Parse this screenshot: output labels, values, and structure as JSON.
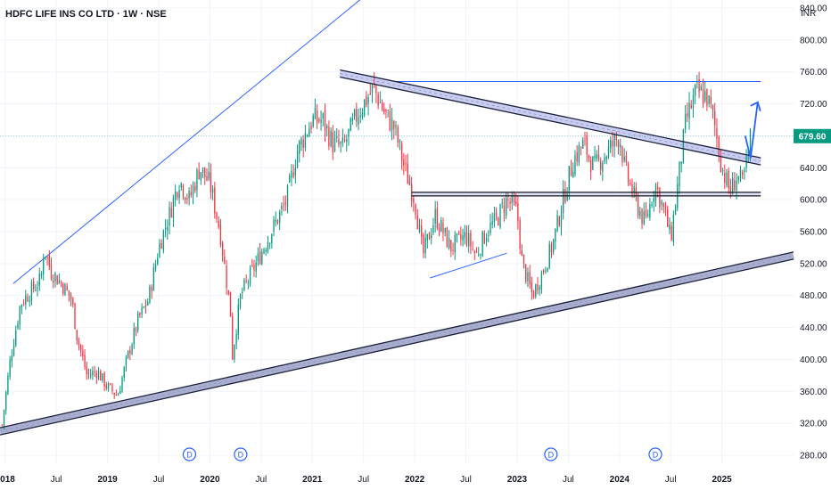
{
  "header": {
    "title": "HDFC LIFE INS CO LTD · 1W · NSE",
    "currency": "INR"
  },
  "price_badge": {
    "label": "679.60",
    "value": 679.6,
    "color": "#089981"
  },
  "colors": {
    "up": "#089981",
    "down": "#f23645",
    "trend_blue": "#2962ff",
    "channel": "#1a1f3c",
    "grid": "#f0f3fa"
  },
  "dividend_marker": "D",
  "chart_data": {
    "type": "candlestick",
    "title": "HDFC LIFE INS CO LTD · 1W · NSE",
    "y_axis": {
      "ticks": [
        280,
        320,
        360,
        400,
        440,
        480,
        520,
        560,
        600,
        640,
        680,
        720,
        760,
        800,
        840
      ],
      "tick_labels": [
        "280.00",
        "320.00",
        "360.00",
        "400.00",
        "440.00",
        "480.00",
        "520.00",
        "560.00",
        "600.00",
        "640.00",
        "680.00",
        "720.00",
        "760.00",
        "800.00",
        "840.00"
      ],
      "range": [
        270,
        850
      ]
    },
    "x_axis": {
      "range": [
        2017.95,
        2025.7
      ],
      "ticks": [
        {
          "label": "2018",
          "t": 2018.0,
          "year": true
        },
        {
          "label": "Jul",
          "t": 2018.5,
          "year": false
        },
        {
          "label": "2019",
          "t": 2019.0,
          "year": true
        },
        {
          "label": "Jul",
          "t": 2019.5,
          "year": false
        },
        {
          "label": "2020",
          "t": 2020.0,
          "year": true
        },
        {
          "label": "Jul",
          "t": 2020.5,
          "year": false
        },
        {
          "label": "2021",
          "t": 2021.0,
          "year": true
        },
        {
          "label": "Jul",
          "t": 2021.5,
          "year": false
        },
        {
          "label": "2022",
          "t": 2022.0,
          "year": true
        },
        {
          "label": "Jul",
          "t": 2022.5,
          "year": false
        },
        {
          "label": "2023",
          "t": 2023.0,
          "year": true
        },
        {
          "label": "Jul",
          "t": 2023.5,
          "year": false
        },
        {
          "label": "2024",
          "t": 2024.0,
          "year": true
        },
        {
          "label": "Jul",
          "t": 2024.5,
          "year": false
        },
        {
          "label": "2025",
          "t": 2025.0,
          "year": true
        }
      ]
    },
    "last_price": 679.6,
    "price_path": [
      [
        2017.97,
        318
      ],
      [
        2018.05,
        400
      ],
      [
        2018.15,
        470
      ],
      [
        2018.25,
        485
      ],
      [
        2018.35,
        500
      ],
      [
        2018.38,
        540
      ],
      [
        2018.45,
        510
      ],
      [
        2018.55,
        495
      ],
      [
        2018.65,
        475
      ],
      [
        2018.7,
        430
      ],
      [
        2018.8,
        380
      ],
      [
        2018.9,
        385
      ],
      [
        2019.0,
        365
      ],
      [
        2019.1,
        355
      ],
      [
        2019.2,
        405
      ],
      [
        2019.3,
        450
      ],
      [
        2019.4,
        475
      ],
      [
        2019.5,
        540
      ],
      [
        2019.6,
        580
      ],
      [
        2019.7,
        625
      ],
      [
        2019.8,
        600
      ],
      [
        2019.9,
        640
      ],
      [
        2020.0,
        620
      ],
      [
        2020.1,
        560
      ],
      [
        2020.2,
        460
      ],
      [
        2020.22,
        405
      ],
      [
        2020.3,
        480
      ],
      [
        2020.45,
        520
      ],
      [
        2020.6,
        560
      ],
      [
        2020.75,
        600
      ],
      [
        2020.85,
        660
      ],
      [
        2021.0,
        700
      ],
      [
        2021.1,
        700
      ],
      [
        2021.2,
        670
      ],
      [
        2021.3,
        665
      ],
      [
        2021.45,
        710
      ],
      [
        2021.6,
        740
      ],
      [
        2021.7,
        710
      ],
      [
        2021.8,
        690
      ],
      [
        2021.9,
        640
      ],
      [
        2022.0,
        600
      ],
      [
        2022.08,
        530
      ],
      [
        2022.2,
        580
      ],
      [
        2022.35,
        540
      ],
      [
        2022.5,
        555
      ],
      [
        2022.6,
        530
      ],
      [
        2022.7,
        560
      ],
      [
        2022.8,
        575
      ],
      [
        2022.9,
        600
      ],
      [
        2023.0,
        585
      ],
      [
        2023.05,
        520
      ],
      [
        2023.15,
        480
      ],
      [
        2023.25,
        510
      ],
      [
        2023.35,
        545
      ],
      [
        2023.45,
        600
      ],
      [
        2023.55,
        650
      ],
      [
        2023.65,
        670
      ],
      [
        2023.75,
        640
      ],
      [
        2023.85,
        655
      ],
      [
        2024.0,
        680
      ],
      [
        2024.05,
        640
      ],
      [
        2024.15,
        600
      ],
      [
        2024.25,
        570
      ],
      [
        2024.35,
        620
      ],
      [
        2024.45,
        580
      ],
      [
        2024.5,
        550
      ],
      [
        2024.55,
        600
      ],
      [
        2024.65,
        700
      ],
      [
        2024.75,
        735
      ],
      [
        2024.85,
        730
      ],
      [
        2024.92,
        700
      ],
      [
        2025.0,
        640
      ],
      [
        2025.08,
        610
      ],
      [
        2025.15,
        630
      ],
      [
        2025.2,
        620
      ],
      [
        2025.25,
        650
      ],
      [
        2025.28,
        679.6
      ]
    ],
    "drawings": {
      "upper_trendline": [
        [
          2018.08,
          495
        ],
        [
          2021.75,
          880
        ]
      ],
      "descending_channel": [
        [
          2021.27,
          758
        ],
        [
          2025.38,
          648
        ]
      ],
      "resistance_line": [
        [
          2021.72,
          748
        ],
        [
          2025.38,
          748
        ]
      ],
      "support_zone": [
        [
          2021.97,
          607
        ],
        [
          2025.38,
          607
        ]
      ],
      "lower_channel": [
        [
          2017.95,
          310
        ],
        [
          2025.7,
          530
        ]
      ],
      "local_trend_2022": [
        [
          2022.15,
          502
        ],
        [
          2022.9,
          533
        ]
      ],
      "projection_arrow": [
        [
          2025.28,
          652
        ],
        [
          2025.35,
          722
        ]
      ]
    },
    "dividends": [
      2019.8,
      2020.3,
      2023.33,
      2024.35
    ]
  }
}
